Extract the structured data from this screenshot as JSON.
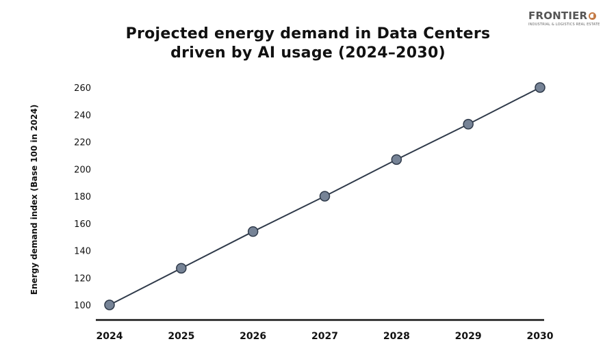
{
  "logo": {
    "name": "FRONTIER",
    "tagline": "INDUSTRIAL & LOGISTICS REAL ESTATE",
    "brand_color": "#c47a45"
  },
  "chart_data": {
    "type": "line",
    "title_line1": "Projected energy demand in Data Centers",
    "title_line2": "driven by AI usage (2024–2030)",
    "xlabel": "",
    "ylabel": "Energy demand index (Base 100 in 2024)",
    "x": [
      "2024",
      "2025",
      "2026",
      "2027",
      "2028",
      "2029",
      "2030"
    ],
    "series": [
      {
        "values": [
          100,
          127,
          154,
          180,
          207,
          233,
          260
        ]
      }
    ],
    "yticks": [
      100,
      120,
      140,
      160,
      180,
      200,
      220,
      240,
      260
    ],
    "ylim": [
      100,
      260
    ],
    "grid": false,
    "legend": "none",
    "colors": {
      "line": "#2f3a4a",
      "marker_fill": "#768396",
      "marker_stroke": "#2f3a4a",
      "axis": "#111111"
    }
  }
}
